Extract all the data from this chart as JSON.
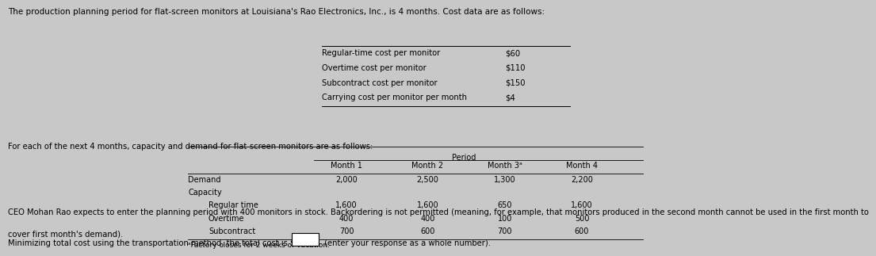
{
  "bg_color": "#c8c8c8",
  "text_color": "#000000",
  "title_text": "The production planning period for flat-screen monitors at Louisiana's Rao Electronics, Inc., is 4 months. Cost data are as follows:",
  "cost_labels": [
    "Regular-time cost per monitor",
    "Overtime cost per monitor",
    "Subcontract cost per monitor",
    "Carrying cost per monitor per month"
  ],
  "cost_values": [
    "$60",
    "$110",
    "$150",
    "$4"
  ],
  "table_intro": "For each of the next 4 months, capacity and demand for flat-screen monitors are as follows:",
  "period_label": "Period",
  "col_headers": [
    "Month 1",
    "Month 2",
    "Month 3ᵃ",
    "Month 4"
  ],
  "row_label_demand": "Demand",
  "row_label_capacity": "Capacity",
  "row_label_regular": "Regular time",
  "row_label_overtime": "Overtime",
  "row_label_subcontract": "Subcontract",
  "demand_row": [
    "2,000",
    "2,500",
    "1,300",
    "2,200"
  ],
  "regular_row": [
    "1,600",
    "1,600",
    "650",
    "1,600"
  ],
  "overtime_row": [
    "400",
    "400",
    "100",
    "500"
  ],
  "subcontract_row": [
    "700",
    "600",
    "700",
    "600"
  ],
  "footnote": "ᵃFactory closes for 2 weeks of vacation.",
  "ceo_text": "CEO Mohan Rao expects to enter the planning period with 400 monitors in stock. Backordering is not permitted (meaning, for example, that monitors produced in the second month cannot be used in the first month to",
  "ceo_text2": "cover first month's demand).",
  "bottom_text": "Minimizing total cost using the transportation method, the total cost is $",
  "bottom_text2": " (enter your response as a whole number).",
  "font_size_title": 7.5,
  "font_size_body": 7.2,
  "font_size_table": 7.0,
  "font_size_footnote": 6.5
}
